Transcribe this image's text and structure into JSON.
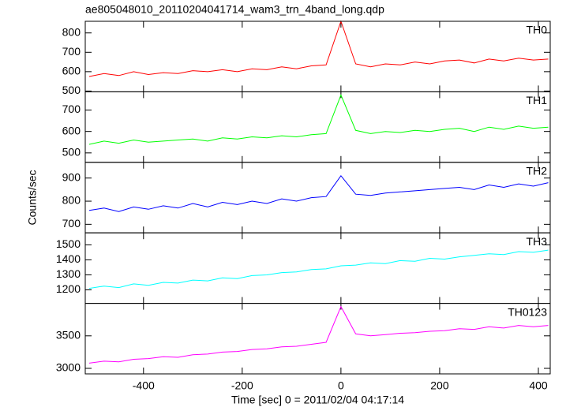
{
  "chart_data": [
    {
      "type": "line",
      "title": "ae805048010_20110204041714_wam3_trn_4band_long.qdp",
      "x": [
        -510,
        -480,
        -450,
        -420,
        -390,
        -360,
        -330,
        -300,
        -270,
        -240,
        -210,
        -180,
        -150,
        -120,
        -90,
        -60,
        -30,
        0,
        30,
        60,
        90,
        120,
        150,
        180,
        210,
        240,
        270,
        300,
        330,
        360,
        390,
        420
      ],
      "xlim": [
        -518,
        424
      ],
      "series": [
        {
          "name": "TH0",
          "color": "#ff0000",
          "values": [
            575,
            590,
            580,
            600,
            585,
            595,
            590,
            605,
            600,
            610,
            600,
            615,
            610,
            625,
            615,
            630,
            635,
            860,
            640,
            625,
            640,
            635,
            650,
            640,
            655,
            660,
            645,
            665,
            655,
            670,
            660,
            665
          ]
        }
      ],
      "ylim": [
        496,
        860
      ],
      "yticks": [
        500,
        600,
        700,
        800
      ]
    },
    {
      "type": "line",
      "x": [
        -510,
        -480,
        -450,
        -420,
        -390,
        -360,
        -330,
        -300,
        -270,
        -240,
        -210,
        -180,
        -150,
        -120,
        -90,
        -60,
        -30,
        0,
        30,
        60,
        90,
        120,
        150,
        180,
        210,
        240,
        270,
        300,
        330,
        360,
        390,
        420
      ],
      "xlim": [
        -518,
        424
      ],
      "series": [
        {
          "name": "TH1",
          "color": "#00ff00",
          "values": [
            540,
            555,
            545,
            560,
            550,
            555,
            560,
            565,
            555,
            570,
            565,
            575,
            570,
            580,
            575,
            585,
            590,
            770,
            605,
            590,
            600,
            595,
            605,
            600,
            610,
            615,
            600,
            620,
            610,
            625,
            615,
            620
          ]
        }
      ],
      "ylim": [
        456,
        785
      ],
      "yticks": [
        500,
        600,
        700
      ]
    },
    {
      "type": "line",
      "ylabel": "Counts/sec",
      "x": [
        -510,
        -480,
        -450,
        -420,
        -390,
        -360,
        -330,
        -300,
        -270,
        -240,
        -210,
        -180,
        -150,
        -120,
        -90,
        -60,
        -30,
        0,
        30,
        60,
        90,
        120,
        150,
        180,
        210,
        240,
        270,
        300,
        330,
        360,
        390,
        420
      ],
      "xlim": [
        -518,
        424
      ],
      "series": [
        {
          "name": "TH2",
          "color": "#0000ff",
          "values": [
            760,
            770,
            755,
            775,
            765,
            780,
            770,
            790,
            775,
            795,
            785,
            800,
            790,
            810,
            800,
            815,
            820,
            910,
            830,
            825,
            835,
            840,
            845,
            850,
            855,
            860,
            850,
            870,
            860,
            875,
            865,
            880
          ]
        }
      ],
      "ylim": [
        663,
        968
      ],
      "yticks": [
        700,
        800,
        900
      ]
    },
    {
      "type": "line",
      "x": [
        -510,
        -480,
        -450,
        -420,
        -390,
        -360,
        -330,
        -300,
        -270,
        -240,
        -210,
        -180,
        -150,
        -120,
        -90,
        -60,
        -30,
        0,
        30,
        60,
        90,
        120,
        150,
        180,
        210,
        240,
        270,
        300,
        330,
        360,
        390,
        420
      ],
      "xlim": [
        -518,
        424
      ],
      "series": [
        {
          "name": "TH3",
          "color": "#00ffff",
          "values": [
            1210,
            1225,
            1215,
            1240,
            1230,
            1250,
            1245,
            1265,
            1260,
            1280,
            1275,
            1295,
            1300,
            1315,
            1320,
            1335,
            1340,
            1360,
            1365,
            1380,
            1375,
            1395,
            1390,
            1410,
            1405,
            1420,
            1430,
            1440,
            1435,
            1455,
            1450,
            1465
          ]
        }
      ],
      "ylim": [
        1110,
        1580
      ],
      "yticks": [
        1200,
        1300,
        1400,
        1500
      ]
    },
    {
      "type": "line",
      "xlabel": "Time [sec] 0 = 2011/02/04 04:17:14",
      "x": [
        -510,
        -480,
        -450,
        -420,
        -390,
        -360,
        -330,
        -300,
        -270,
        -240,
        -210,
        -180,
        -150,
        -120,
        -90,
        -60,
        -30,
        0,
        30,
        60,
        90,
        120,
        150,
        180,
        210,
        240,
        270,
        300,
        330,
        360,
        390,
        420
      ],
      "xlim": [
        -518,
        424
      ],
      "xticks": [
        -400,
        -200,
        0,
        200,
        400
      ],
      "series": [
        {
          "name": "TH0123",
          "color": "#ff00ff",
          "values": [
            3080,
            3110,
            3100,
            3140,
            3150,
            3180,
            3170,
            3210,
            3220,
            3250,
            3260,
            3290,
            3300,
            3330,
            3340,
            3370,
            3400,
            3950,
            3530,
            3500,
            3520,
            3540,
            3550,
            3570,
            3580,
            3610,
            3600,
            3640,
            3620,
            3660,
            3640,
            3660
          ]
        }
      ],
      "ylim": [
        2915,
        4000
      ],
      "yticks": [
        3000,
        3500
      ]
    }
  ]
}
